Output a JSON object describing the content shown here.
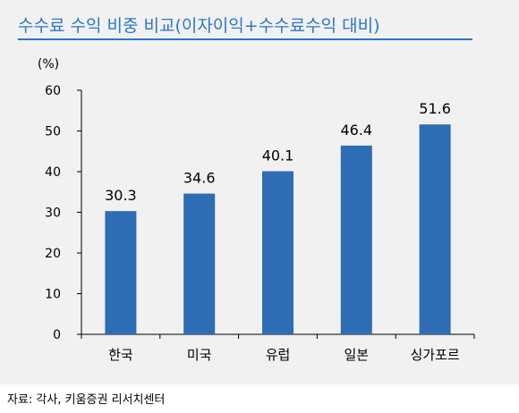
{
  "title": "수수료 수익 비중 비교(이자이익+수수료수익 대비)",
  "source": "자료: 각사, 키움증권 리서치센터",
  "colors": {
    "accent": "#2a78c6",
    "bar": "#2e6db3",
    "panel": "#f1f1f1"
  },
  "chart_data": {
    "type": "bar",
    "title": "수수료 수익 비중 비교(이자이익+수수료수익 대비)",
    "ylabel": "(%)",
    "xlabel": "",
    "categories": [
      "한국",
      "미국",
      "유럽",
      "일본",
      "싱가포르"
    ],
    "values": [
      30.3,
      34.6,
      40.1,
      46.4,
      51.6
    ],
    "data_labels": [
      "30.3",
      "34.6",
      "40.1",
      "46.4",
      "51.6"
    ],
    "ylim": [
      0,
      60
    ],
    "yticks": [
      0,
      10,
      20,
      30,
      40,
      50,
      60
    ],
    "grid": false,
    "legend": "none"
  }
}
